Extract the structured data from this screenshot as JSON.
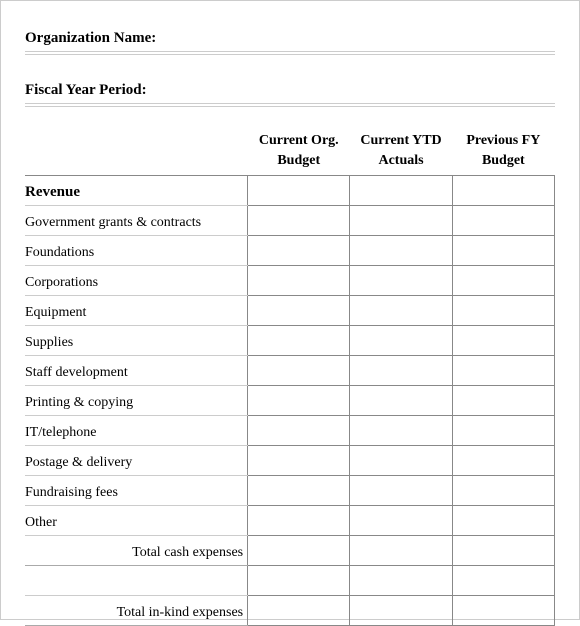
{
  "fields": {
    "org_name_label": "Organization Name:",
    "fiscal_period_label": "Fiscal Year Period:"
  },
  "table": {
    "headers": {
      "col1_line1": "Current Org.",
      "col1_line2": "Budget",
      "col2_line1": "Current YTD",
      "col2_line2": "Actuals",
      "col3_line1": "Previous FY",
      "col3_line2": "Budget"
    },
    "section_title": "Revenue",
    "rows": [
      "Government grants & contracts",
      "Foundations",
      "Corporations",
      "Equipment",
      "Supplies",
      "Staff development",
      "Printing & copying",
      "IT/telephone",
      "Postage & delivery",
      "Fundraising fees",
      "Other"
    ],
    "totals": {
      "cash": "Total cash expenses",
      "inkind": "Total in-kind expenses"
    }
  },
  "colors": {
    "text": "#000000",
    "light_rule": "#cccccc",
    "dark_rule": "#888888",
    "background": "#ffffff"
  },
  "typography": {
    "font_family": "Times New Roman",
    "label_fontsize": 15,
    "body_fontsize": 14
  }
}
